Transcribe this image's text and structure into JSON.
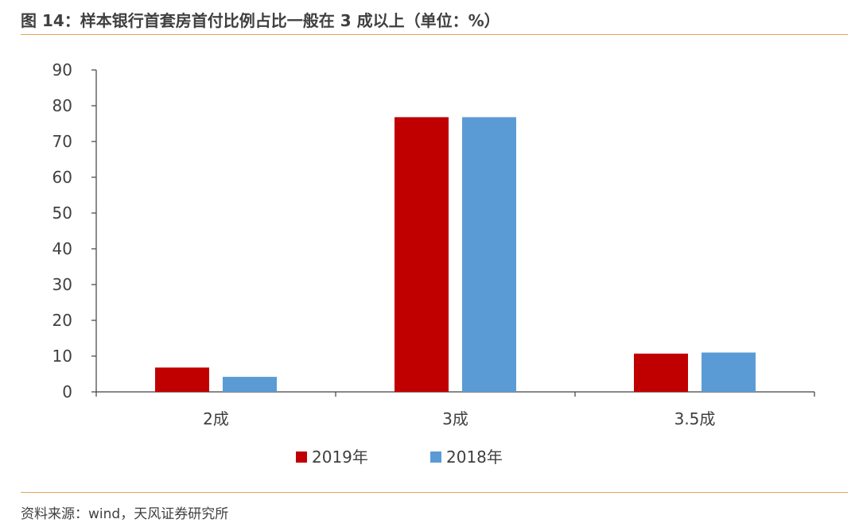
{
  "header": {
    "title": "图 14：样本银行首套房首付比例占比一般在 3 成以上（单位：%）"
  },
  "footer": {
    "source": "资料来源：wind，天风证券研究所"
  },
  "colors": {
    "series_2019": "#C00000",
    "series_2018": "#5B9BD5",
    "accent_rule": "#E6A25A",
    "axis": "#404040"
  },
  "chart_data": {
    "type": "bar",
    "categories": [
      "2成",
      "3成",
      "3.5成"
    ],
    "series": [
      {
        "name": "2019年",
        "values": [
          6.8,
          76.8,
          10.7
        ]
      },
      {
        "name": "2018年",
        "values": [
          4.2,
          76.8,
          11.0
        ]
      }
    ],
    "ylim": [
      0,
      90
    ],
    "yticks": [
      "0",
      "10",
      "20",
      "30",
      "40",
      "50",
      "60",
      "70",
      "80",
      "90"
    ],
    "xlabel": "",
    "ylabel": "",
    "grid": false,
    "legend": "bottom"
  }
}
